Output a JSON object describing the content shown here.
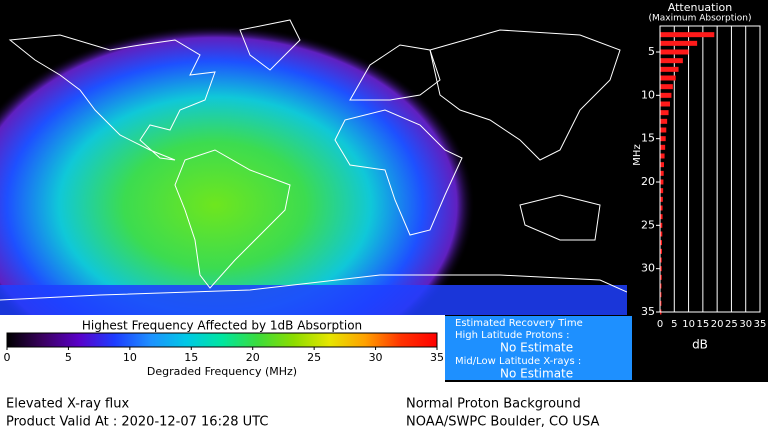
{
  "map": {
    "colorbar": {
      "title": "Highest Frequency Affected by 1dB Absorption",
      "xlabel": "Degraded Frequency (MHz)",
      "xlim": [
        0,
        35
      ],
      "xticks": [
        0,
        5,
        10,
        15,
        20,
        25,
        30,
        35
      ],
      "colors": [
        "#000000",
        "#3a0060",
        "#5a00c8",
        "#1e3cff",
        "#1e90ff",
        "#00c8e6",
        "#00e6a0",
        "#3cdc3c",
        "#8cdc00",
        "#e6e600",
        "#ffa000",
        "#ff3200",
        "#ff0000"
      ]
    }
  },
  "chart_data": {
    "type": "hbar",
    "title": "Attenuation",
    "subtitle": "(Maximum Absorption)",
    "ylabel": "MHz",
    "xlabel": "dB",
    "frequencies": [
      3,
      4,
      5,
      6,
      7,
      8,
      9,
      10,
      11,
      12,
      13,
      14,
      15,
      16,
      17,
      18,
      19,
      20,
      21,
      22,
      23,
      24,
      25,
      26,
      27,
      28,
      29,
      30,
      31,
      32,
      33,
      34,
      35
    ],
    "values": [
      19,
      13,
      10,
      8,
      6.5,
      5.5,
      4.5,
      4,
      3.5,
      3,
      2.5,
      2.2,
      2,
      1.8,
      1.6,
      1.4,
      1.3,
      1.2,
      1.1,
      1,
      0.9,
      0.9,
      0.8,
      0.8,
      0.7,
      0.7,
      0.6,
      0.6,
      0.6,
      0.5,
      0.5,
      0.5,
      0.5
    ],
    "color": "#ff1a1a",
    "xlim": [
      0,
      35
    ],
    "xticks": [
      0,
      5,
      10,
      15,
      20,
      25,
      30,
      35
    ],
    "ylim": [
      2,
      35
    ],
    "yticks": [
      5,
      10,
      15,
      20,
      25,
      30,
      35
    ],
    "grid": true
  },
  "recovery": {
    "title": "Estimated Recovery Time",
    "protons_label": "High Latitude Protons :",
    "protons_value": "No Estimate",
    "xrays_label": "Mid/Low Latitude X-rays :",
    "xrays_value": "No Estimate"
  },
  "footer": {
    "xray_status": "Elevated X-ray flux",
    "valid_at": "Product Valid At : 2020-12-07 16:28 UTC",
    "proton_status": "Normal Proton Background",
    "credit": "NOAA/SWPC Boulder, CO USA"
  }
}
